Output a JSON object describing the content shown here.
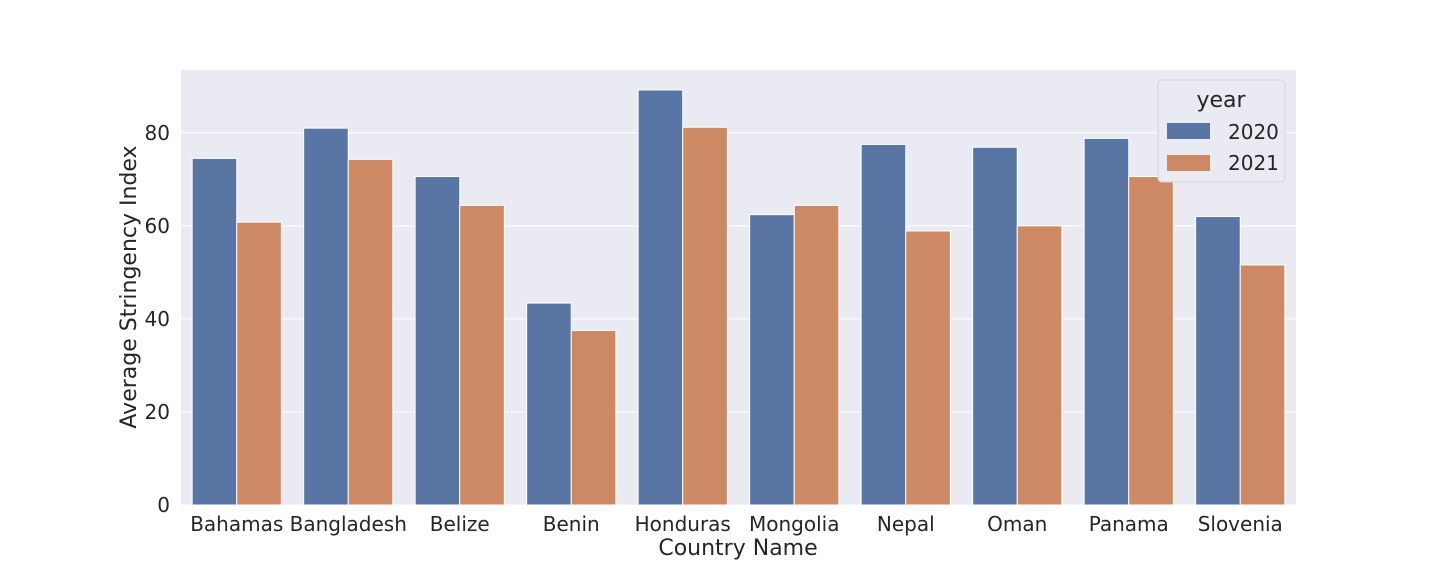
{
  "chart_data": {
    "type": "bar",
    "categories": [
      "Bahamas",
      "Bangladesh",
      "Belize",
      "Benin",
      "Honduras",
      "Mongolia",
      "Nepal",
      "Oman",
      "Panama",
      "Slovenia"
    ],
    "series": [
      {
        "name": "2020",
        "color": "#5875a4",
        "values": [
          74.5,
          81.0,
          70.6,
          43.4,
          89.2,
          62.4,
          77.5,
          76.9,
          78.8,
          62.0
        ]
      },
      {
        "name": "2021",
        "color": "#cc8963",
        "values": [
          60.8,
          74.3,
          64.4,
          37.5,
          81.2,
          64.4,
          58.9,
          60.0,
          70.6,
          51.6
        ]
      }
    ],
    "xlabel": "Country Name",
    "ylabel": "Average Stringency Index",
    "ylim": [
      0,
      93.5
    ],
    "yticks": [
      0,
      20,
      40,
      60,
      80
    ],
    "grid": true,
    "legend": {
      "title": "year",
      "placement": "top-right"
    },
    "background_color": "#eaeaf2",
    "grid_color": "#ffffff"
  }
}
